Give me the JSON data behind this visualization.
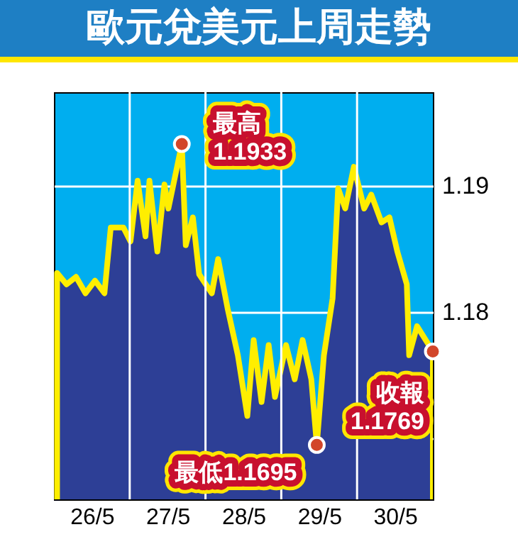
{
  "chart_data": {
    "type": "area",
    "title": "歐元兌美元上周走勢",
    "x": [
      "--05-26T01:00",
      "--05-26T04:00",
      "--05-26T07:00",
      "--05-26T10:00",
      "--05-26T13:00",
      "--05-26T16:00",
      "--05-26T18:00",
      "--05-26T22:00",
      "--05-27T00:15",
      "--05-27T02:30",
      "--05-27T05:00",
      "--05-27T06:15",
      "--05-27T08:45",
      "--05-27T11:00",
      "--05-27T12:15",
      "--05-27T16:30",
      "--05-27T17:45",
      "--05-27T20:00",
      "--05-27T22:00",
      "--05-28T02:00",
      "--05-28T04:00",
      "--05-28T07:00",
      "--05-28T10:15",
      "--05-28T13:15",
      "--05-28T15:15",
      "--05-28T17:45",
      "--05-28T20:00",
      "--05-28T22:00",
      "--05-29T01:30",
      "--05-29T04:15",
      "--05-29T06:45",
      "--05-29T09:30",
      "--05-29T11:15",
      "--05-29T13:30",
      "--05-29T16:15",
      "--05-29T18:00",
      "--05-29T20:15",
      "--05-29T23:00",
      "--05-30T02:15",
      "--05-30T04:30",
      "--05-30T07:45",
      "--05-30T10:15",
      "--05-30T12:45",
      "--05-30T15:45",
      "--05-30T16:30",
      "--05-30T19:00",
      "--05-30T21:00",
      "--05-31T00:00"
    ],
    "series": [
      {
        "type": "scatter",
        "x": [
          "--05-27T16:30",
          "--05-29T11:15",
          "--05-31T00:00"
        ],
        "color": "#d2462a",
        "values": [
          1.1933,
          1.1695,
          1.1769
        ]
      },
      {
        "color": "#2d3f96",
        "values": [
          1.1831,
          1.1822,
          1.1828,
          1.1815,
          1.1825,
          1.1815,
          1.1867,
          1.1867,
          1.1856,
          1.1904,
          1.186,
          1.1904,
          1.1848,
          1.1901,
          1.1882,
          1.1933,
          1.1853,
          1.1875,
          1.183,
          1.1815,
          1.1842,
          1.1803,
          1.1766,
          1.1718,
          1.1778,
          1.1729,
          1.1774,
          1.1733,
          1.1774,
          1.1747,
          1.1778,
          1.1747,
          1.1695,
          1.1766,
          1.1811,
          1.1898,
          1.1882,
          1.1915,
          1.1882,
          1.1893,
          1.1871,
          1.1875,
          1.1848,
          1.1822,
          1.1766,
          1.1789,
          1.1781,
          1.1769
        ]
      }
    ],
    "xlim": [
      "--05-26",
      "--05-31"
    ],
    "xticks": [
      {
        "value": "--05-26T12:00",
        "label": "26/5"
      },
      {
        "value": "--05-27",
        "label": null
      },
      {
        "value": "--05-27T12:00",
        "label": "27/5"
      },
      {
        "value": "--05-28",
        "label": null
      },
      {
        "value": "--05-28T12:00",
        "label": "28/5"
      },
      {
        "value": "--05-29",
        "label": null
      },
      {
        "value": "--05-29T12:00",
        "label": "29/5"
      },
      {
        "value": "--05-30",
        "label": null
      },
      {
        "value": "--05-30T12:00",
        "label": "30/5"
      }
    ],
    "ylim": [
      1.1652,
      1.1974
    ],
    "yticks": [
      {
        "value": 1.17,
        "label": null
      },
      1.18,
      1.19
    ],
    "grid": true,
    "annotations": [
      {
        "text": "最高\n1.1933",
        "x": "--05-27T16:30",
        "y": 1.1933
      },
      {
        "text": "最低1.1695",
        "x": "--05-29T11:15",
        "y": 1.1695
      },
      {
        "text": "收報\n1.1769",
        "x": "--05-31T00:00",
        "y": 1.1769
      }
    ]
  }
}
